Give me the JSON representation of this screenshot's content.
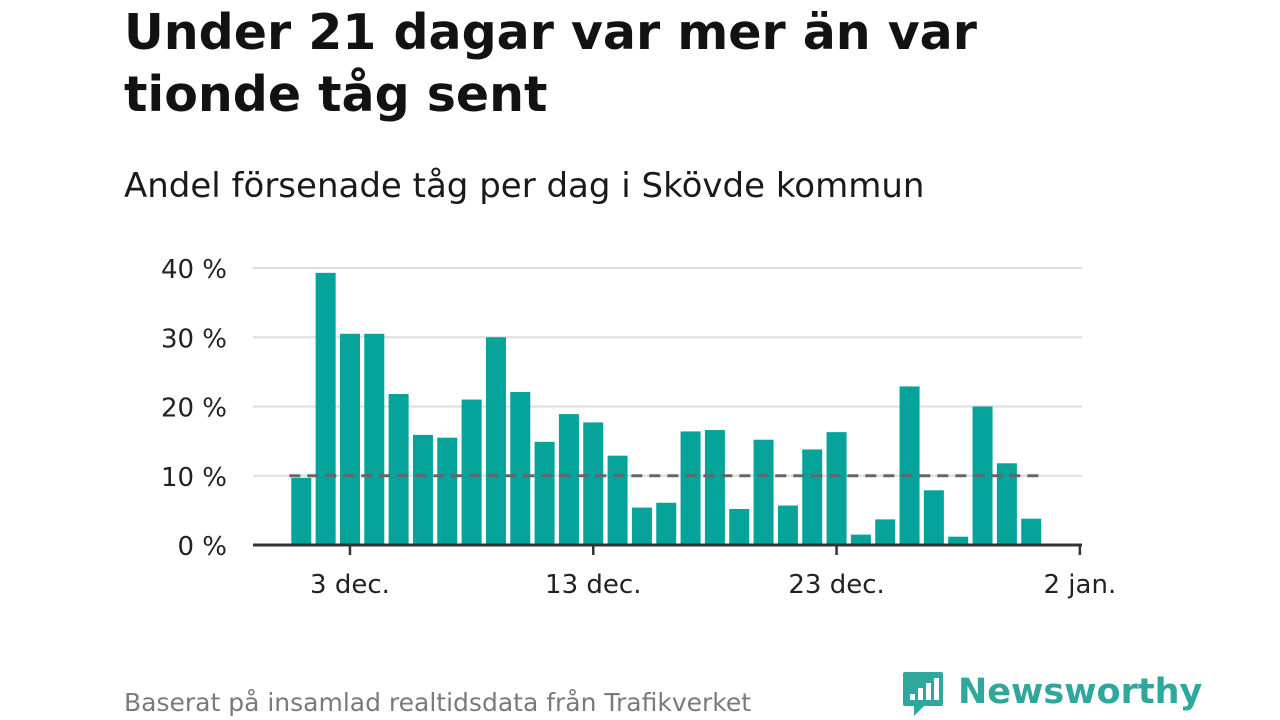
{
  "title": "Under 21 dagar var mer än var tionde tåg sent",
  "subtitle": "Andel försenade tåg per dag i Skövde kommun",
  "source": "Baserat på insamlad realtidsdata från Trafikverket",
  "brand": {
    "name": "Newsworthy",
    "icon": "newsworthy-logo-icon",
    "color": "#30a79c"
  },
  "chart_data": {
    "type": "bar",
    "x_label": "",
    "y_label": "",
    "categories": [
      "1 dec.",
      "2 dec.",
      "3 dec.",
      "4 dec.",
      "5 dec.",
      "6 dec.",
      "7 dec.",
      "8 dec.",
      "9 dec.",
      "10 dec.",
      "11 dec.",
      "12 dec.",
      "13 dec.",
      "14 dec.",
      "15 dec.",
      "16 dec.",
      "17 dec.",
      "18 dec.",
      "19 dec.",
      "20 dec.",
      "21 dec.",
      "22 dec.",
      "23 dec.",
      "24 dec.",
      "25 dec.",
      "26 dec.",
      "27 dec.",
      "28 dec.",
      "29 dec.",
      "30 dec.",
      "31 dec."
    ],
    "values": [
      9.7,
      39.3,
      30.5,
      30.5,
      21.8,
      15.9,
      15.5,
      21.0,
      30.0,
      22.1,
      14.9,
      18.9,
      17.7,
      12.9,
      5.4,
      6.1,
      16.4,
      16.6,
      5.2,
      15.2,
      5.7,
      13.8,
      16.3,
      1.5,
      3.7,
      22.9,
      7.9,
      1.2,
      20.0,
      11.8,
      3.8
    ],
    "reference_line": {
      "value": 10,
      "style": "dashed",
      "color": "#666666"
    },
    "bar_color": "#05a399",
    "ylim": [
      0,
      40
    ],
    "y_ticks": [
      {
        "value": 0,
        "label": "0 %"
      },
      {
        "value": 10,
        "label": "10 %"
      },
      {
        "value": 20,
        "label": "20 %"
      },
      {
        "value": 30,
        "label": "30 %"
      },
      {
        "value": 40,
        "label": "40 %"
      }
    ],
    "x_ticks": [
      {
        "index": 2,
        "label": "3 dec."
      },
      {
        "index": 12,
        "label": "13 dec."
      },
      {
        "index": 22,
        "label": "23 dec."
      },
      {
        "index": 32,
        "label": "2 jan."
      }
    ],
    "grid": true,
    "legend": "none"
  }
}
